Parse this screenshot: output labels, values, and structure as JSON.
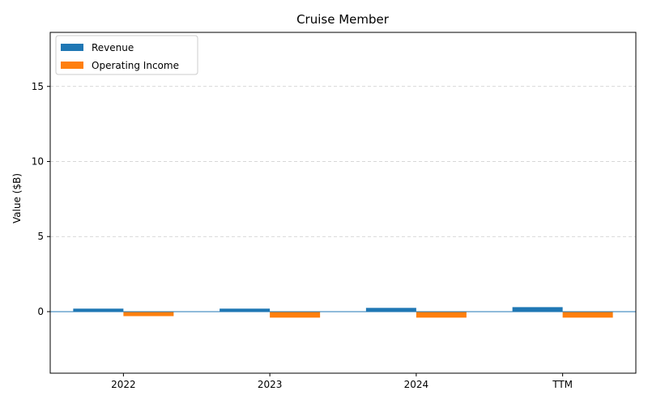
{
  "chart_data": {
    "type": "bar",
    "title": "Cruise Member",
    "xlabel": "",
    "ylabel": "Value ($B)",
    "categories": [
      "2022",
      "2023",
      "2024",
      "TTM"
    ],
    "series": [
      {
        "name": "Revenue",
        "values": [
          0.2,
          0.2,
          0.25,
          0.3
        ],
        "color": "#1f77b4"
      },
      {
        "name": "Operating Income",
        "values": [
          -0.3,
          -0.4,
          -0.4,
          -0.4
        ],
        "color": "#ff7f0e"
      }
    ],
    "ylim": [
      -4.1,
      18.6
    ],
    "yticks": [
      0,
      5,
      10,
      15
    ],
    "ytick_labels": [
      "0",
      "5",
      "10",
      "15"
    ],
    "grid": "horizontal-dashed",
    "legend_position": "top-left",
    "zero_line_color": "#1f77b4"
  }
}
